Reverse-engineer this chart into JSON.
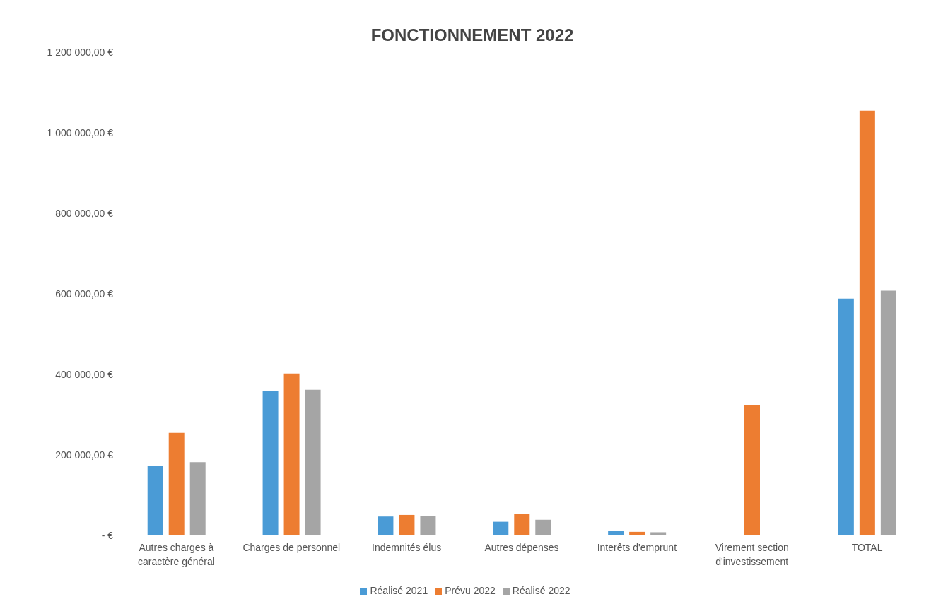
{
  "chart_data": {
    "type": "bar",
    "title": "FONCTIONNEMENT 2022",
    "categories": [
      "Autres charges à caractère général",
      "Charges de personnel",
      "Indemnités élus",
      "Autres dépenses",
      "Interêts d'emprunt",
      "Virement section d'investissement",
      "TOTAL"
    ],
    "series": [
      {
        "name": "Réalisé 2021",
        "color": "#4a9bd6",
        "values": [
          173000,
          359000,
          47000,
          34000,
          11000,
          null,
          588000
        ]
      },
      {
        "name": "Prévu 2022",
        "color": "#ed7d31",
        "values": [
          255000,
          402000,
          51000,
          54000,
          9000,
          323000,
          1055000
        ]
      },
      {
        "name": "Réalisé 2022",
        "color": "#a5a5a5",
        "values": [
          182000,
          362000,
          49000,
          39000,
          8000,
          null,
          608000
        ]
      }
    ],
    "ylim": [
      0,
      1200000
    ],
    "yticks": [
      {
        "value": 0,
        "label": "-   €"
      },
      {
        "value": 200000,
        "label": "200 000,00 €"
      },
      {
        "value": 400000,
        "label": "400 000,00 €"
      },
      {
        "value": 600000,
        "label": "600 000,00 €"
      },
      {
        "value": 800000,
        "label": "800 000,00 €"
      },
      {
        "value": 1000000,
        "label": "1 000 000,00 €"
      },
      {
        "value": 1200000,
        "label": "1 200 000,00 €"
      }
    ],
    "grid": false,
    "legend": "bottom"
  }
}
